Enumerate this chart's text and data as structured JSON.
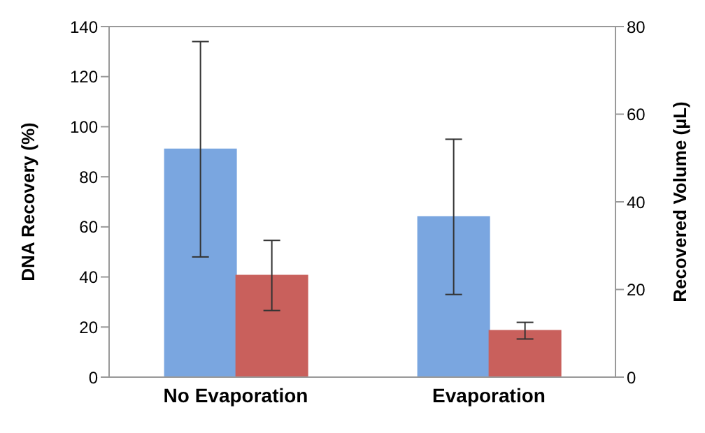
{
  "chart_data": {
    "type": "bar",
    "categories": [
      "No Evaporation",
      "Evaporation"
    ],
    "ylabel": "DNA Recovery (%)",
    "y2label": "Recovered Volume (µL)",
    "series": [
      {
        "color": "#7aa6e0",
        "values": [
          91,
          64
        ],
        "errors": [
          43,
          31
        ]
      },
      {
        "color": "#c9605c",
        "values": [
          23.2,
          10.6
        ],
        "errors": [
          8,
          1.9
        ],
        "axis": "y2"
      }
    ],
    "ylim": [
      0,
      140
    ],
    "yticks": [
      0,
      20,
      40,
      60,
      80,
      100,
      120,
      140
    ],
    "y2lim": [
      0,
      80
    ],
    "y2ticks": [
      0,
      20,
      40,
      60,
      80
    ],
    "grid": false,
    "legend": false
  }
}
